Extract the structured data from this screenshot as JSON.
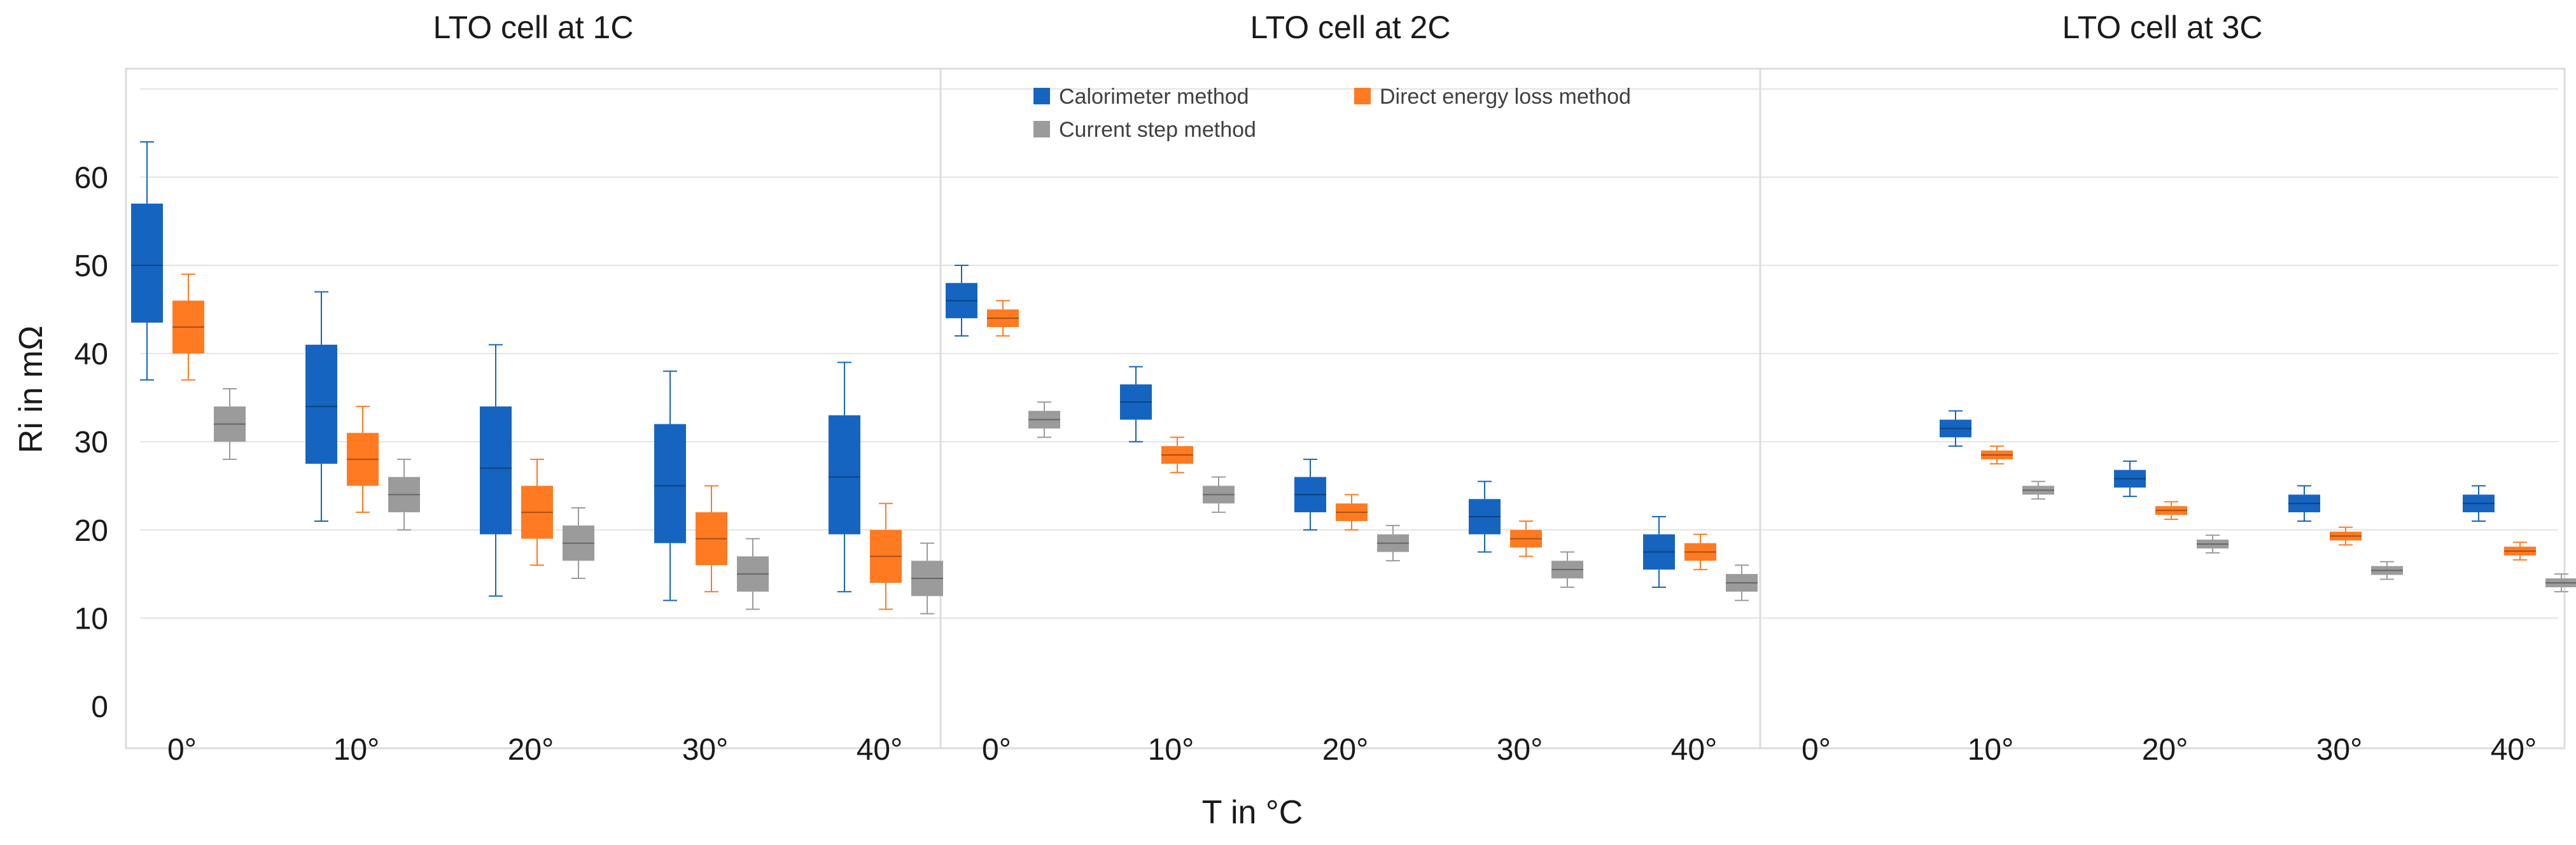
{
  "chart_data": {
    "type": "box",
    "ylabel": "Ri in mΩ",
    "xlabel": "T in °C",
    "ylim": [
      -2,
      72
    ],
    "yticks": [
      0,
      10,
      20,
      30,
      40,
      50,
      60
    ],
    "categories": [
      "0°",
      "10°",
      "20°",
      "30°",
      "40°"
    ],
    "series_names": [
      "Calorimeter method",
      "Direct energy loss method",
      "Current step method"
    ],
    "colors": [
      "#1565c0",
      "#ff7a21",
      "#9b9b9b"
    ],
    "panels": [
      {
        "title": "LTO cell at 1C",
        "boxes": {
          "Calorimeter method": [
            {
              "min": 37,
              "q1": 43.5,
              "median": 50,
              "q3": 57,
              "max": 64
            },
            {
              "min": 21,
              "q1": 27.5,
              "median": 34,
              "q3": 41,
              "max": 47
            },
            {
              "min": 12.5,
              "q1": 19.5,
              "median": 27,
              "q3": 34,
              "max": 41
            },
            {
              "min": 12,
              "q1": 18.5,
              "median": 25,
              "q3": 32,
              "max": 38
            },
            {
              "min": 13,
              "q1": 19.5,
              "median": 26,
              "q3": 33,
              "max": 39
            }
          ],
          "Direct energy loss method": [
            {
              "min": 37,
              "q1": 40,
              "median": 43,
              "q3": 46,
              "max": 49
            },
            {
              "min": 22,
              "q1": 25,
              "median": 28,
              "q3": 31,
              "max": 34
            },
            {
              "min": 16,
              "q1": 19,
              "median": 22,
              "q3": 25,
              "max": 28
            },
            {
              "min": 13,
              "q1": 16,
              "median": 19,
              "q3": 22,
              "max": 25
            },
            {
              "min": 11,
              "q1": 14,
              "median": 17,
              "q3": 20,
              "max": 23
            }
          ],
          "Current step method": [
            {
              "min": 28,
              "q1": 30,
              "median": 32,
              "q3": 34,
              "max": 36
            },
            {
              "min": 20,
              "q1": 22,
              "median": 24,
              "q3": 26,
              "max": 28
            },
            {
              "min": 14.5,
              "q1": 16.5,
              "median": 18.5,
              "q3": 20.5,
              "max": 22.5
            },
            {
              "min": 11,
              "q1": 13,
              "median": 15,
              "q3": 17,
              "max": 19
            },
            {
              "min": 10.5,
              "q1": 12.5,
              "median": 14.5,
              "q3": 16.5,
              "max": 18.5
            }
          ]
        }
      },
      {
        "title": "LTO cell at 2C",
        "boxes": {
          "Calorimeter method": [
            {
              "min": 42,
              "q1": 44,
              "median": 46,
              "q3": 48,
              "max": 50
            },
            {
              "min": 30,
              "q1": 32.5,
              "median": 34.5,
              "q3": 36.5,
              "max": 38.5
            },
            {
              "min": 20,
              "q1": 22,
              "median": 24,
              "q3": 26,
              "max": 28
            },
            {
              "min": 17.5,
              "q1": 19.5,
              "median": 21.5,
              "q3": 23.5,
              "max": 25.5
            },
            {
              "min": 13.5,
              "q1": 15.5,
              "median": 17.5,
              "q3": 19.5,
              "max": 21.5
            }
          ],
          "Direct energy loss method": [
            {
              "min": 42,
              "q1": 43,
              "median": 44,
              "q3": 45,
              "max": 46
            },
            {
              "min": 26.5,
              "q1": 27.5,
              "median": 28.5,
              "q3": 29.5,
              "max": 30.5
            },
            {
              "min": 20,
              "q1": 21,
              "median": 22,
              "q3": 23,
              "max": 24
            },
            {
              "min": 17,
              "q1": 18,
              "median": 19,
              "q3": 20,
              "max": 21
            },
            {
              "min": 15.5,
              "q1": 16.5,
              "median": 17.5,
              "q3": 18.5,
              "max": 19.5
            }
          ],
          "Current step method": [
            {
              "min": 30.5,
              "q1": 31.5,
              "median": 32.5,
              "q3": 33.5,
              "max": 34.5
            },
            {
              "min": 22,
              "q1": 23,
              "median": 24,
              "q3": 25,
              "max": 26
            },
            {
              "min": 16.5,
              "q1": 17.5,
              "median": 18.5,
              "q3": 19.5,
              "max": 20.5
            },
            {
              "min": 13.5,
              "q1": 14.5,
              "median": 15.5,
              "q3": 16.5,
              "max": 17.5
            },
            {
              "min": 12,
              "q1": 13,
              "median": 14,
              "q3": 15,
              "max": 16
            }
          ]
        }
      },
      {
        "title": "LTO cell at 3C",
        "boxes": {
          "Calorimeter method": [
            null,
            {
              "min": 29.5,
              "q1": 30.5,
              "median": 31.5,
              "q3": 32.5,
              "max": 33.5
            },
            {
              "min": 23.8,
              "q1": 24.8,
              "median": 25.8,
              "q3": 26.8,
              "max": 27.8
            },
            {
              "min": 21,
              "q1": 22,
              "median": 23,
              "q3": 24,
              "max": 25
            },
            {
              "min": 21,
              "q1": 22,
              "median": 23,
              "q3": 24,
              "max": 25
            }
          ],
          "Direct energy loss method": [
            null,
            {
              "min": 27.5,
              "q1": 28,
              "median": 28.5,
              "q3": 29,
              "max": 29.5
            },
            {
              "min": 21.2,
              "q1": 21.7,
              "median": 22.2,
              "q3": 22.7,
              "max": 23.2
            },
            {
              "min": 18.3,
              "q1": 18.8,
              "median": 19.3,
              "q3": 19.8,
              "max": 20.3
            },
            {
              "min": 16.6,
              "q1": 17.1,
              "median": 17.6,
              "q3": 18.1,
              "max": 18.6
            }
          ],
          "Current step method": [
            null,
            {
              "min": 23.5,
              "q1": 24,
              "median": 24.5,
              "q3": 25,
              "max": 25.5
            },
            {
              "min": 17.4,
              "q1": 17.9,
              "median": 18.4,
              "q3": 18.9,
              "max": 19.4
            },
            {
              "min": 14.4,
              "q1": 14.9,
              "median": 15.4,
              "q3": 15.9,
              "max": 16.4
            },
            {
              "min": 13,
              "q1": 13.5,
              "median": 14,
              "q3": 14.5,
              "max": 15
            }
          ]
        }
      }
    ]
  }
}
